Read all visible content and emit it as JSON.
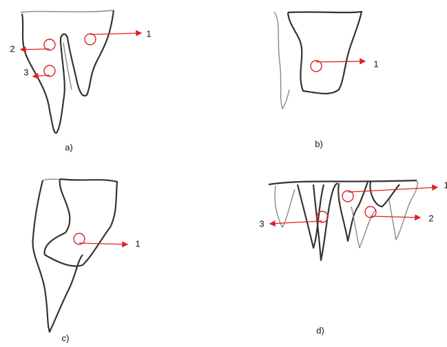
{
  "panels": [
    {
      "label": "a)",
      "markers": [
        "1",
        "2",
        "3"
      ]
    },
    {
      "label": "b)",
      "markers": [
        "1"
      ]
    },
    {
      "label": "c)",
      "markers": [
        "1"
      ]
    },
    {
      "label": "d)",
      "markers": [
        "1",
        "2",
        "3"
      ]
    }
  ]
}
